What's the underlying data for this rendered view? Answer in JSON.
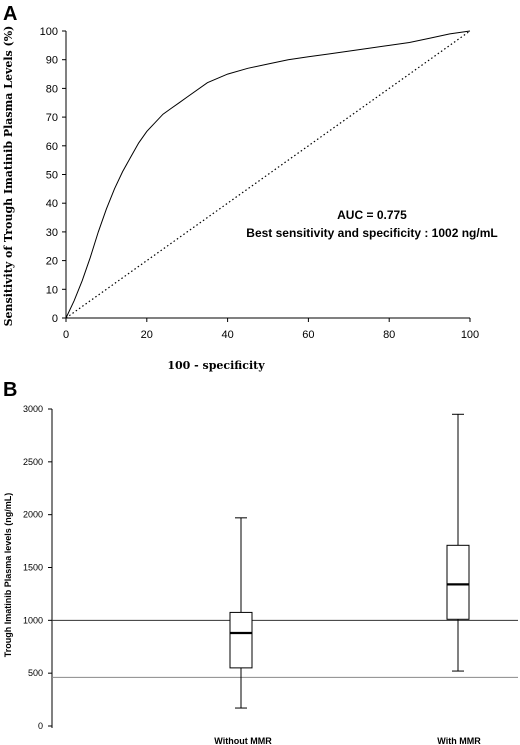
{
  "chart_data": [
    {
      "type": "line",
      "panel_label": "A",
      "title": "",
      "xlabel": "100 - specificity",
      "ylabel": "Sensitivity of Trough Imatinib Plasma Levels (%)",
      "xlim": [
        0,
        100
      ],
      "ylim": [
        0,
        100
      ],
      "xticks": [
        0,
        20,
        40,
        60,
        80,
        100
      ],
      "yticks": [
        0,
        10,
        20,
        30,
        40,
        50,
        60,
        70,
        80,
        90,
        100
      ],
      "grid": false,
      "series": [
        {
          "style": "solid",
          "x": [
            0,
            2,
            4,
            6,
            8,
            10,
            12,
            14,
            16,
            18,
            20,
            22,
            24,
            26,
            28,
            30,
            35,
            40,
            45,
            50,
            55,
            60,
            65,
            70,
            75,
            80,
            85,
            90,
            95,
            100
          ],
          "y": [
            0,
            6,
            13,
            21,
            30,
            38,
            45,
            51,
            56,
            61,
            65,
            68,
            71,
            73,
            75,
            77,
            82,
            85,
            87,
            88.5,
            90,
            91,
            92,
            93,
            94,
            95,
            96,
            97.5,
            99,
            100
          ]
        },
        {
          "style": "dotted",
          "x": [
            0,
            100
          ],
          "y": [
            0,
            100
          ]
        }
      ],
      "annotations": [
        {
          "text": "AUC = 0.775"
        },
        {
          "text": "Best sensitivity and specificity : 1002 ng/mL"
        }
      ]
    },
    {
      "type": "box",
      "panel_label": "B",
      "title": "",
      "xlabel": "",
      "ylabel": "Trough Imatinib Plasma  levels  (ng/mL)",
      "ylim": [
        0,
        3000
      ],
      "yticks": [
        0,
        500,
        1000,
        1500,
        2000,
        2500,
        3000
      ],
      "grid": false,
      "categories": [
        "Without MMR",
        "With MMR"
      ],
      "boxes": [
        {
          "whisker_low": 170,
          "q1": 550,
          "median": 880,
          "q3": 1075,
          "whisker_high": 1970
        },
        {
          "whisker_low": 520,
          "q1": 1010,
          "median": 1340,
          "q3": 1710,
          "whisker_high": 2950
        }
      ],
      "reference_lines": [
        1000,
        460
      ]
    }
  ]
}
